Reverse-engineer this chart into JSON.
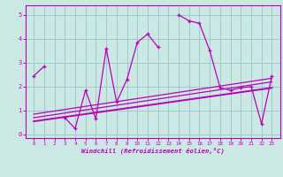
{
  "xlabel": "Windchill (Refroidissement éolien,°C)",
  "bg_color": "#cce8e4",
  "line_color": "#bb00bb",
  "grid_color": "#99cccc",
  "x_ticks": [
    0,
    1,
    2,
    3,
    4,
    5,
    6,
    7,
    8,
    9,
    10,
    11,
    12,
    13,
    14,
    15,
    16,
    17,
    18,
    19,
    20,
    21,
    22,
    23
  ],
  "y_ticks": [
    0,
    1,
    2,
    3,
    4,
    5
  ],
  "ylim": [
    -0.15,
    5.4
  ],
  "xlim": [
    -0.8,
    23.8
  ],
  "series1_x": [
    0,
    1,
    3,
    4,
    5,
    6,
    7,
    8,
    9,
    10,
    11,
    12,
    14,
    15,
    16,
    17,
    18,
    19,
    20,
    21,
    22,
    23
  ],
  "series1_y": [
    2.45,
    2.85,
    0.7,
    0.25,
    1.85,
    0.65,
    3.6,
    1.35,
    2.3,
    3.85,
    4.2,
    3.65,
    5.0,
    4.75,
    4.65,
    3.5,
    1.95,
    1.85,
    1.95,
    2.0,
    0.45,
    2.45
  ],
  "trend1_x": [
    0,
    23
  ],
  "trend1_y": [
    0.7,
    2.2
  ],
  "trend2_x": [
    0,
    23
  ],
  "trend2_y": [
    0.55,
    1.95
  ],
  "trend3_x": [
    0,
    23
  ],
  "trend3_y": [
    0.85,
    2.35
  ]
}
